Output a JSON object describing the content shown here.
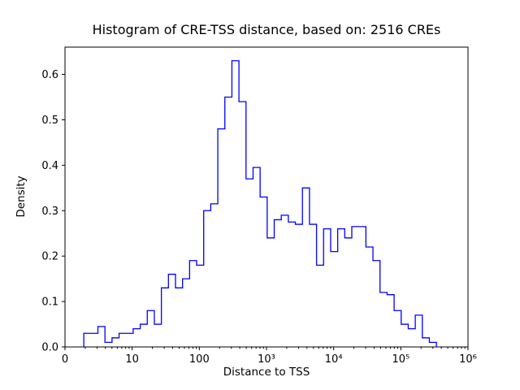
{
  "chart_data": {
    "type": "bar",
    "subtype": "step-histogram",
    "title": "Histogram of CRE-TSS distance, based on: 2516 CREs",
    "xlabel": "Distance to TSS",
    "ylabel": "Density",
    "n_cres_in_title": 2516,
    "x_scale": "log10",
    "xlim_log10": [
      0,
      6
    ],
    "ylim": [
      0,
      0.66
    ],
    "x_tick_log10": [
      0,
      1,
      2,
      3,
      4,
      5,
      6
    ],
    "x_tick_labels": [
      "0",
      "10",
      "100",
      "10³",
      "10⁴",
      "10⁵",
      "10⁶"
    ],
    "y_ticks": [
      0.0,
      0.1,
      0.2,
      0.3,
      0.4,
      0.5,
      0.6
    ],
    "line_color": "#0000ff",
    "grid": false,
    "legend": "none",
    "bins": {
      "start_log10": 0.28,
      "width_log10": 0.105,
      "densities": [
        0.03,
        0.03,
        0.045,
        0.01,
        0.02,
        0.03,
        0.03,
        0.04,
        0.05,
        0.08,
        0.05,
        0.13,
        0.16,
        0.13,
        0.15,
        0.19,
        0.18,
        0.3,
        0.315,
        0.48,
        0.55,
        0.63,
        0.54,
        0.37,
        0.395,
        0.33,
        0.24,
        0.28,
        0.29,
        0.275,
        0.27,
        0.35,
        0.27,
        0.18,
        0.26,
        0.21,
        0.26,
        0.24,
        0.265,
        0.265,
        0.22,
        0.19,
        0.12,
        0.115,
        0.08,
        0.05,
        0.04,
        0.07,
        0.02,
        0.01
      ]
    }
  }
}
